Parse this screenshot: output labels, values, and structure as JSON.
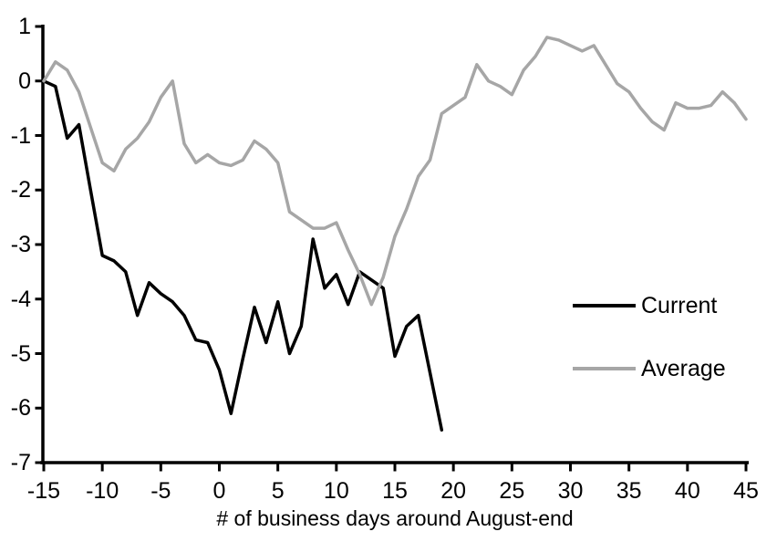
{
  "page": {
    "background": "#ffffff"
  },
  "chart_data": {
    "type": "line",
    "title": "",
    "xlabel": "# of business days around August-end",
    "ylabel": "",
    "xlim": [
      -15,
      45
    ],
    "ylim": [
      -7,
      1
    ],
    "x_ticks": [
      -15,
      -10,
      -5,
      0,
      5,
      10,
      15,
      20,
      25,
      30,
      35,
      40,
      45
    ],
    "y_ticks": [
      1,
      0,
      -1,
      -2,
      -3,
      -4,
      -5,
      -6,
      -7
    ],
    "grid": false,
    "legend_position": "right-center",
    "axis_color": "#000000",
    "series": [
      {
        "name": "Current",
        "color": "#000000",
        "x": [
          -15,
          -14,
          -13,
          -12,
          -11,
          -10,
          -9,
          -8,
          -7,
          -6,
          -5,
          -4,
          -3,
          -2,
          -1,
          0,
          1,
          2,
          3,
          4,
          5,
          6,
          7,
          8,
          9,
          10,
          11,
          12,
          13,
          14,
          15,
          16,
          17,
          18,
          19
        ],
        "values": [
          0,
          -0.1,
          -1.05,
          -0.8,
          -2.0,
          -3.2,
          -3.3,
          -3.5,
          -4.3,
          -3.7,
          -3.9,
          -4.05,
          -4.3,
          -4.75,
          -4.8,
          -5.3,
          -6.1,
          -5.1,
          -4.15,
          -4.8,
          -4.05,
          -5.0,
          -4.5,
          -2.9,
          -3.8,
          -3.55,
          -4.1,
          -3.5,
          -3.65,
          -3.8,
          -5.05,
          -4.5,
          -4.3,
          -5.35,
          -6.4
        ]
      },
      {
        "name": "Average",
        "color": "#a6a6a6",
        "x": [
          -15,
          -14,
          -13,
          -12,
          -11,
          -10,
          -9,
          -8,
          -7,
          -6,
          -5,
          -4,
          -3,
          -2,
          -1,
          0,
          1,
          2,
          3,
          4,
          5,
          6,
          7,
          8,
          9,
          10,
          11,
          12,
          13,
          14,
          15,
          16,
          17,
          18,
          19,
          20,
          21,
          22,
          23,
          24,
          25,
          26,
          27,
          28,
          29,
          30,
          31,
          32,
          33,
          34,
          35,
          36,
          37,
          38,
          39,
          40,
          41,
          42,
          43,
          44,
          45
        ],
        "values": [
          0,
          0.35,
          0.2,
          -0.2,
          -0.85,
          -1.5,
          -1.65,
          -1.25,
          -1.05,
          -0.75,
          -0.3,
          0,
          -1.15,
          -1.5,
          -1.35,
          -1.5,
          -1.55,
          -1.45,
          -1.1,
          -1.25,
          -1.5,
          -2.4,
          -2.55,
          -2.7,
          -2.7,
          -2.6,
          -3.1,
          -3.55,
          -4.1,
          -3.6,
          -2.85,
          -2.35,
          -1.75,
          -1.45,
          -0.6,
          -0.45,
          -0.3,
          0.3,
          0,
          -0.1,
          -0.25,
          0.2,
          0.45,
          0.8,
          0.75,
          0.65,
          0.55,
          0.65,
          0.3,
          -0.05,
          -0.2,
          -0.5,
          -0.75,
          -0.9,
          -0.4,
          -0.5,
          -0.5,
          -0.45,
          -0.2,
          -0.4,
          -0.7
        ]
      }
    ]
  }
}
